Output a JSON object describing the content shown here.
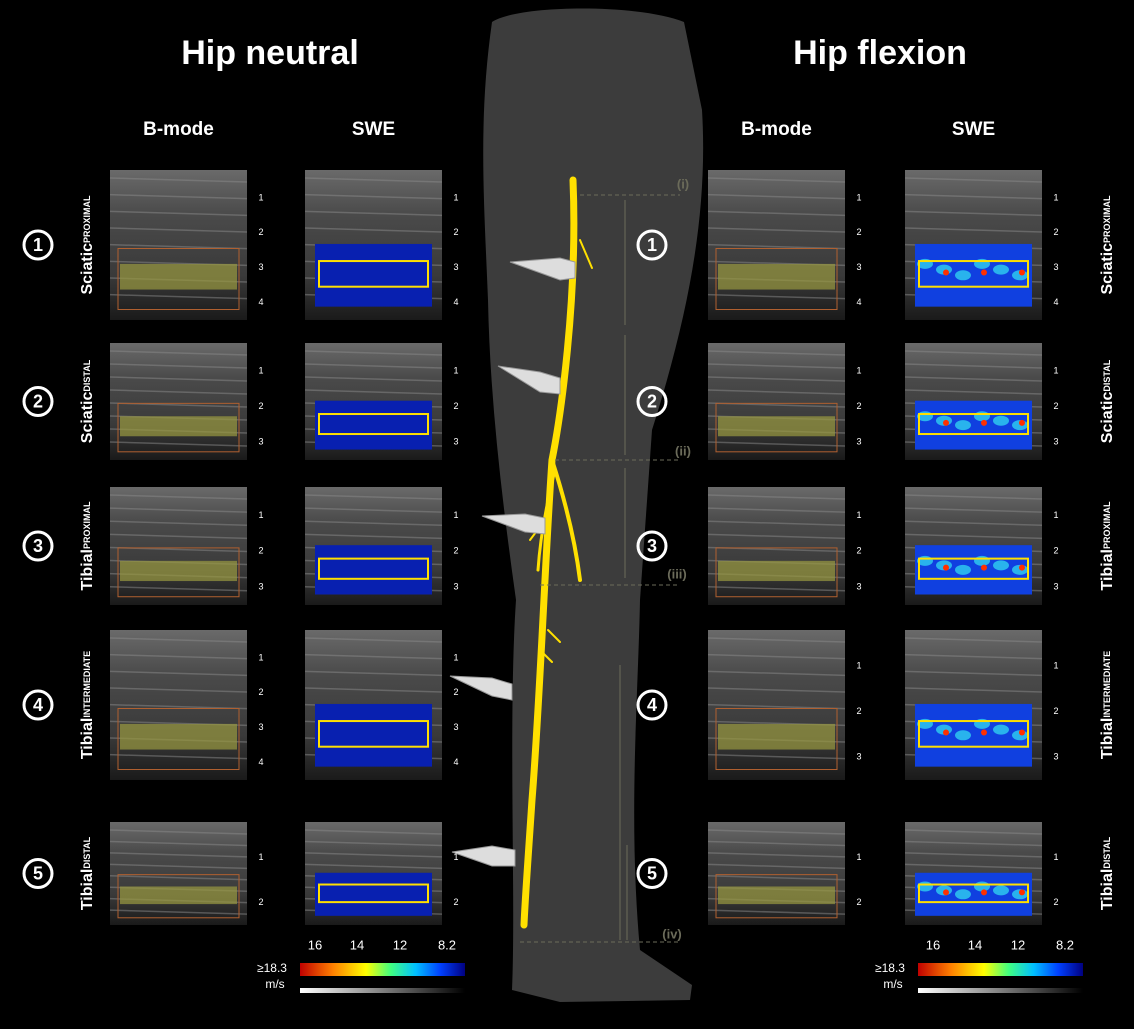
{
  "panels": [
    {
      "title": "Hip neutral",
      "columns": [
        "B-mode",
        "SWE"
      ],
      "depth": [
        [
          "1",
          "2",
          "3",
          "4"
        ],
        [
          "1",
          "2",
          "3"
        ],
        [
          "1",
          "2",
          "3"
        ],
        [
          "1",
          "2",
          "3",
          "4"
        ],
        [
          "1",
          "2"
        ]
      ]
    },
    {
      "title": "Hip flexion",
      "columns": [
        "B-mode",
        "SWE"
      ],
      "depth": [
        [
          "1",
          "2",
          "3",
          "4"
        ],
        [
          "1",
          "2",
          "3"
        ],
        [
          "1",
          "2",
          "3"
        ],
        [
          "1",
          "2",
          "3"
        ],
        [
          "1",
          "2"
        ]
      ]
    }
  ],
  "sites": [
    {
      "number": "1",
      "name": "Sciatic",
      "sub": "PROXIMAL"
    },
    {
      "number": "2",
      "name": "Sciatic",
      "sub": "DISTAL"
    },
    {
      "number": "3",
      "name": "Tibial",
      "sub": "PROXIMAL"
    },
    {
      "number": "4",
      "name": "Tibial",
      "sub": "INTERMEDIATE"
    },
    {
      "number": "5",
      "name": "Tibial",
      "sub": "DISTAL"
    }
  ],
  "landmarks": [
    "(i)",
    "(ii)",
    "(iii)",
    "(iv)"
  ],
  "colorbar": {
    "max_label": "≥18.3",
    "unit": "m/s",
    "labels": [
      "16",
      "14",
      "12",
      "8.2"
    ]
  }
}
